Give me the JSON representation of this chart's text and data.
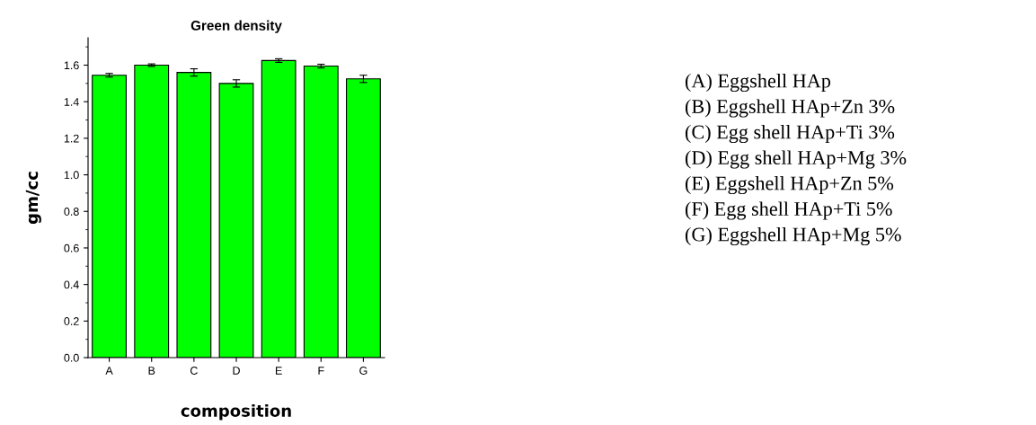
{
  "chart_data": {
    "type": "bar",
    "title": "Green density",
    "xlabel": "composition",
    "ylabel": "gm/cc",
    "categories": [
      "A",
      "B",
      "C",
      "D",
      "E",
      "F",
      "G"
    ],
    "values": [
      1.545,
      1.6,
      1.56,
      1.5,
      1.625,
      1.595,
      1.525
    ],
    "errors": [
      0.01,
      0.007,
      0.02,
      0.02,
      0.01,
      0.01,
      0.02
    ],
    "color": "#00ff00",
    "ylim": [
      0,
      1.75
    ],
    "yticks": [
      {
        "value": 0,
        "label": "0.0"
      },
      0.2,
      0.4,
      0.6,
      0.8,
      {
        "value": 1,
        "label": "1.0"
      },
      1.2,
      1.4,
      1.6
    ],
    "grid": false,
    "annotations": [
      "(A) Eggshell HAp",
      "(B) Eggshell HAp+Zn 3%",
      "(C) Egg shell HAp+Ti 3%",
      "(D) Egg shell HAp+Mg 3%",
      "(E) Eggshell HAp+Zn 5%",
      "(F) Egg shell HAp+Ti 5%",
      "(G) Eggshell HAp+Mg 5%"
    ]
  }
}
